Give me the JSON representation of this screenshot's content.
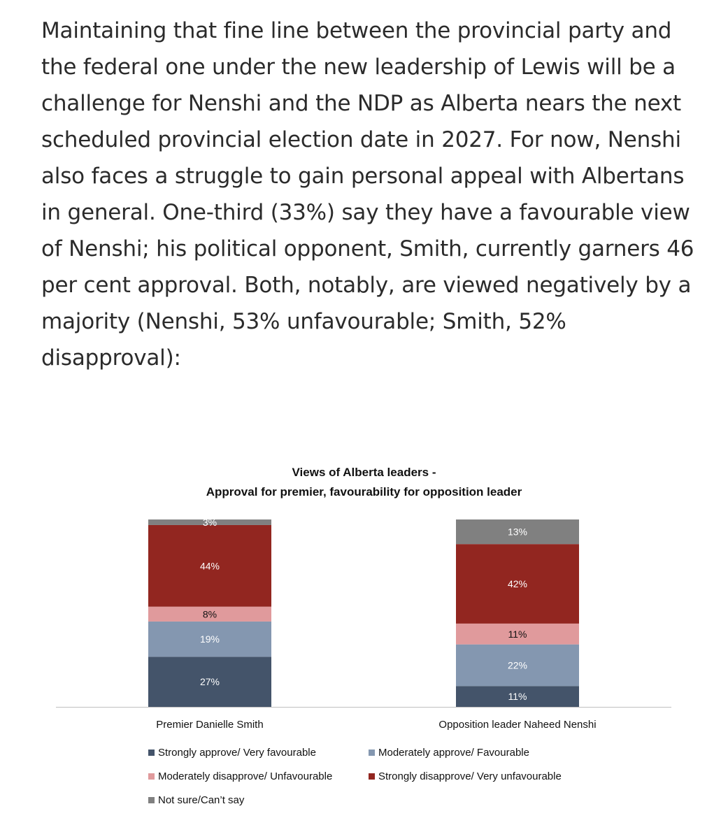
{
  "article": {
    "paragraph": "Maintaining that fine line between the provincial party and the federal one under the new leadership of Lewis will be a challenge for Nenshi and the NDP as Alberta nears the next scheduled provincial election date in 2027. For now, Nenshi also faces a struggle to gain personal appeal with Albertans in general. One-third (33%) say they have a favourable view of Nenshi; his political opponent, Smith, currently garners 46 per cent approval. Both, notably, are viewed negatively by a majority (Nenshi, 53% unfavourable; Smith, 52% disapproval):"
  },
  "chart_data": {
    "type": "bar",
    "stacked": true,
    "title": "Views of Alberta leaders -",
    "subtitle": "Approval for premier, favourability for opposition leader",
    "categories": [
      "Premier Danielle Smith",
      "Opposition leader Naheed Nenshi"
    ],
    "series": [
      {
        "name": "Strongly approve/ Very favourable",
        "color": "#44546a",
        "label_color": "#ffffff",
        "values": [
          27,
          11
        ]
      },
      {
        "name": "Moderately approve/ Favourable",
        "color": "#8497b0",
        "label_color": "#ffffff",
        "values": [
          19,
          22
        ]
      },
      {
        "name": "Moderately disapprove/ Unfavourable",
        "color": "#e09a9c",
        "label_color": "#111111",
        "values": [
          8,
          11
        ]
      },
      {
        "name": "Strongly disapprove/ Very unfavourable",
        "color": "#922620",
        "label_color": "#ffffff",
        "values": [
          44,
          42
        ]
      },
      {
        "name": "Not sure/Can’t say",
        "color": "#808080",
        "label_color": "#ffffff",
        "values": [
          3,
          13
        ]
      }
    ],
    "data_label_suffix": "%",
    "ylim": [
      0,
      100
    ],
    "legend_position": "bottom"
  }
}
